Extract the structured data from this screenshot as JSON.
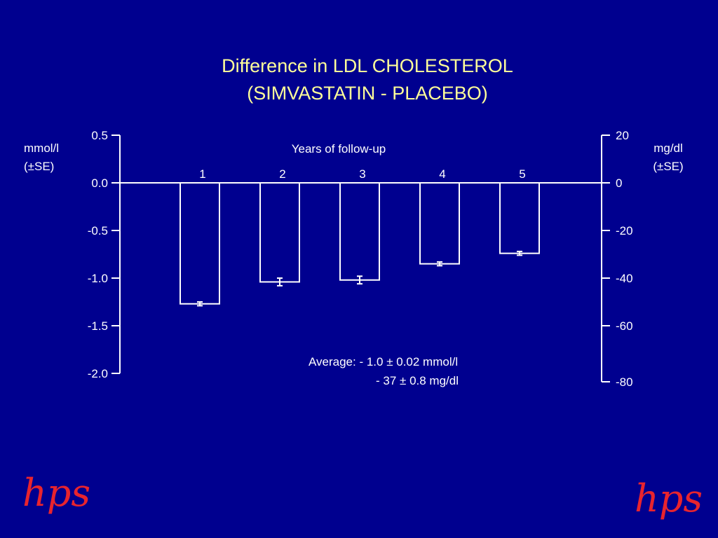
{
  "title": {
    "line1": "Difference in LDL CHOLESTEROL",
    "line2": "(SIMVASTATIN - PLACEBO)"
  },
  "colors": {
    "background": "#00008f",
    "title": "#ffff99",
    "axis": "#ffffff",
    "text": "#ffffff",
    "logo": "#e8242e"
  },
  "chart_data": {
    "type": "bar",
    "xlabel": "Years of follow-up",
    "categories": [
      "1",
      "2",
      "3",
      "4",
      "5"
    ],
    "values": [
      -1.27,
      -1.04,
      -1.02,
      -0.85,
      -0.74
    ],
    "se": [
      0.02,
      0.04,
      0.04,
      0.02,
      0.02
    ],
    "left_axis": {
      "label_line1": "mmol/l",
      "label_line2": "(±SE)",
      "ylim": [
        -2.0,
        0.5
      ],
      "ticks": [
        0.5,
        0.0,
        -0.5,
        -1.0,
        -1.5,
        -2.0
      ],
      "tick_labels": [
        "0.5",
        "0.0",
        "-0.5",
        "-1.0",
        "-1.5",
        "-2.0"
      ]
    },
    "right_axis": {
      "label_line1": "mg/dl",
      "label_line2": "(±SE)",
      "ylim": [
        -80,
        20
      ],
      "ticks": [
        20,
        0,
        -20,
        -40,
        -60,
        -80
      ],
      "tick_labels": [
        "20",
        "0",
        "-20",
        "-40",
        "-60",
        "-80"
      ]
    },
    "annotation": {
      "line1": "Average: - 1.0 ± 0.02 mmol/l",
      "line2": "- 37 ±  0.8 mg/dl"
    },
    "grid": false
  },
  "logos": {
    "left": "hps",
    "right": "hps"
  }
}
